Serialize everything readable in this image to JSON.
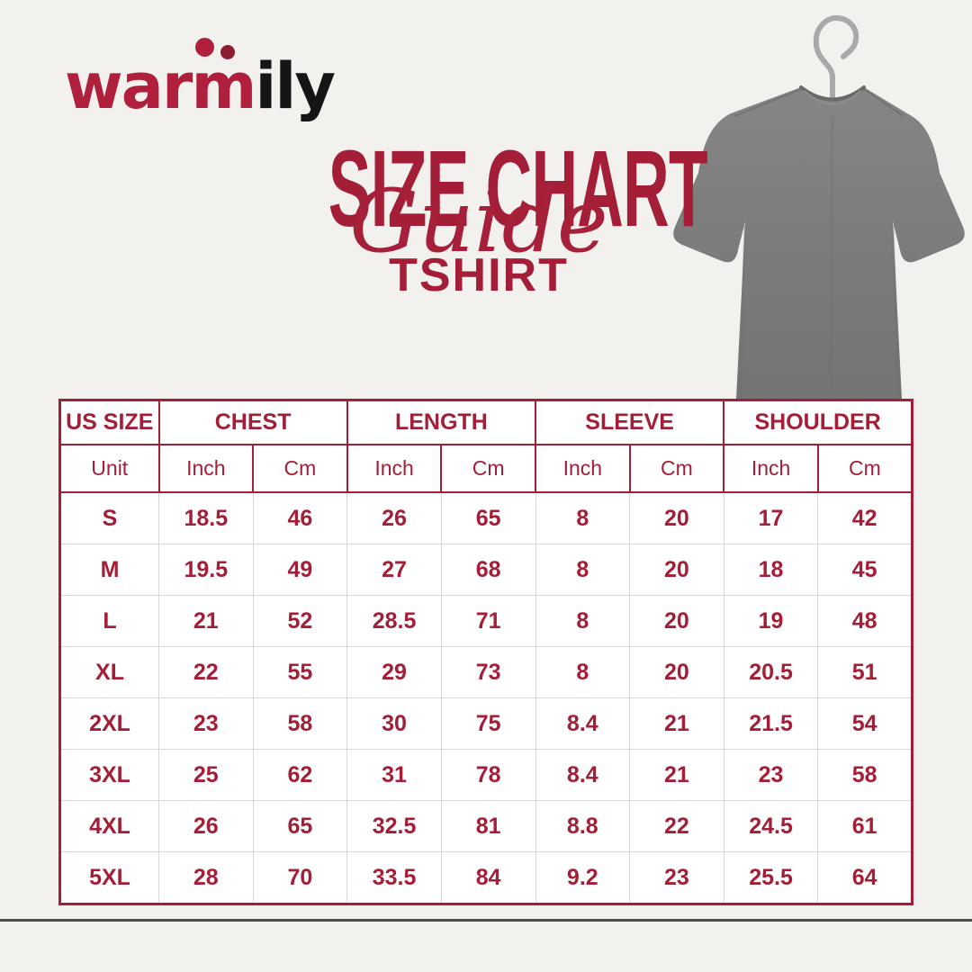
{
  "colors": {
    "crimson": "#A31E36",
    "logo_red": "#B01F3C",
    "logo_dot_dark_red": "#8E1C31",
    "logo_black": "#151515",
    "table_grid_gray": "#D8D8D8",
    "background": "#F2F1EE",
    "footer_line": "#4D4C48",
    "shirt_gray": "#7E7E7E",
    "hanger_wood": "#E5BE82"
  },
  "logo": {
    "part_war": "war",
    "part_m": "m",
    "part_ily": "ily"
  },
  "title": {
    "main": "SIZE CHART",
    "script": "Guide",
    "sub": "TSHIRT"
  },
  "images": {
    "hero": "gray-tshirt-on-wooden-hanger"
  },
  "table": {
    "header_row1": [
      {
        "label": "US SIZE",
        "span": 1
      },
      {
        "label": "CHEST",
        "span": 2
      },
      {
        "label": "LENGTH",
        "span": 2
      },
      {
        "label": "SLEEVE",
        "span": 2
      },
      {
        "label": "SHOULDER",
        "span": 2
      }
    ],
    "header_row2": [
      "Unit",
      "Inch",
      "Cm",
      "Inch",
      "Cm",
      "Inch",
      "Cm",
      "Inch",
      "Cm"
    ],
    "rows": [
      [
        "S",
        "18.5",
        "46",
        "26",
        "65",
        "8",
        "20",
        "17",
        "42"
      ],
      [
        "M",
        "19.5",
        "49",
        "27",
        "68",
        "8",
        "20",
        "18",
        "45"
      ],
      [
        "L",
        "21",
        "52",
        "28.5",
        "71",
        "8",
        "20",
        "19",
        "48"
      ],
      [
        "XL",
        "22",
        "55",
        "29",
        "73",
        "8",
        "20",
        "20.5",
        "51"
      ],
      [
        "2XL",
        "23",
        "58",
        "30",
        "75",
        "8.4",
        "21",
        "21.5",
        "54"
      ],
      [
        "3XL",
        "25",
        "62",
        "31",
        "78",
        "8.4",
        "21",
        "23",
        "58"
      ],
      [
        "4XL",
        "26",
        "65",
        "32.5",
        "81",
        "8.8",
        "22",
        "24.5",
        "61"
      ],
      [
        "5XL",
        "28",
        "70",
        "33.5",
        "84",
        "9.2",
        "23",
        "25.5",
        "64"
      ]
    ]
  }
}
